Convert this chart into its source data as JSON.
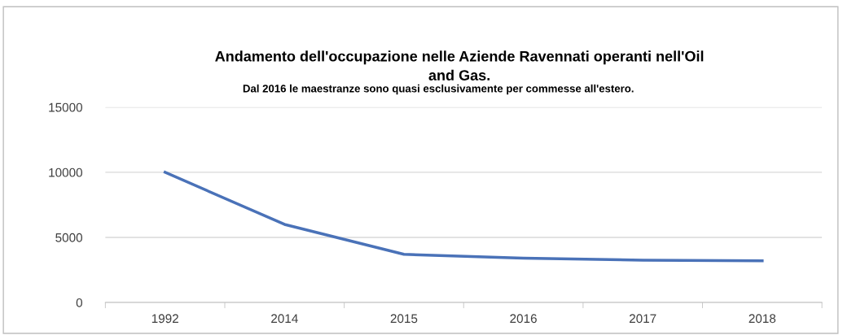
{
  "chart_data": {
    "type": "line",
    "title": "Andamento dell'occupazione nelle Aziende Ravennati operanti nell'Oil\nand Gas.",
    "subtitle": "Dal 2016 le maestranze sono quasi esclusivamente per commesse all'estero.",
    "categories": [
      "1992",
      "2014",
      "2015",
      "2016",
      "2017",
      "2018"
    ],
    "series": [
      {
        "color": "#4a72b8",
        "values": [
          10000,
          6000,
          3700,
          3400,
          3250,
          3200
        ]
      }
    ],
    "ylim": [
      0,
      15000
    ],
    "yticks": [
      0,
      5000,
      10000,
      15000
    ],
    "grid": "y",
    "legend": false,
    "marker": "none",
    "line_style": "solid"
  }
}
